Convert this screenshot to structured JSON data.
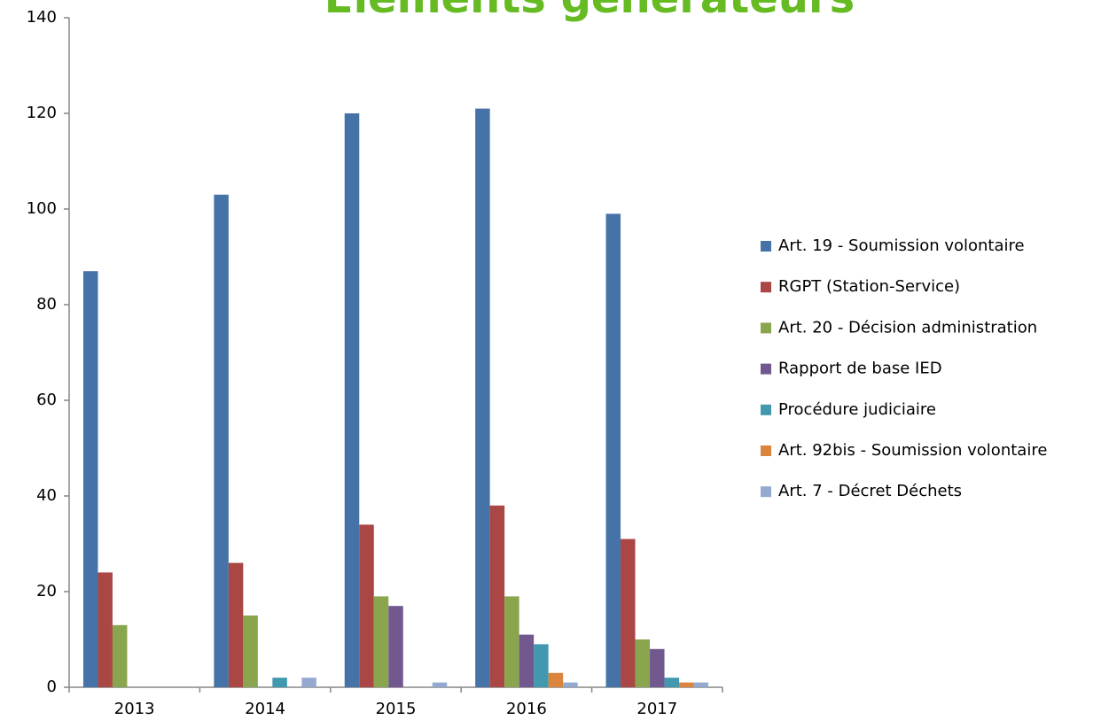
{
  "chart_data": {
    "type": "bar",
    "title": "Eléments générateurs",
    "categories": [
      "2013",
      "2014",
      "2015",
      "2016",
      "2017"
    ],
    "series": [
      {
        "name": "Art. 19 - Soumission volontaire",
        "color": "#4572a7",
        "values": [
          87,
          103,
          120,
          121,
          99
        ]
      },
      {
        "name": "RGPT (Station-Service)",
        "color": "#aa4643",
        "values": [
          24,
          26,
          34,
          38,
          31
        ]
      },
      {
        "name": "Art. 20 - Décision administration",
        "color": "#89a54e",
        "values": [
          13,
          15,
          19,
          19,
          10
        ]
      },
      {
        "name": "Rapport de base IED",
        "color": "#71588f",
        "values": [
          0,
          0,
          17,
          11,
          8
        ]
      },
      {
        "name": "Procédure judiciaire",
        "color": "#4198af",
        "values": [
          0,
          2,
          0,
          9,
          2
        ]
      },
      {
        "name": "Art. 92bis - Soumission volontaire",
        "color": "#db843d",
        "values": [
          0,
          0,
          0,
          3,
          1
        ]
      },
      {
        "name": "Art. 7 - Décret Déchets",
        "color": "#93a9cf",
        "values": [
          0,
          2,
          1,
          1,
          1
        ]
      }
    ],
    "ylim": [
      0,
      140
    ],
    "yticks": [
      0,
      20,
      40,
      60,
      80,
      100,
      120,
      140
    ],
    "grid": false,
    "legend": "right"
  }
}
